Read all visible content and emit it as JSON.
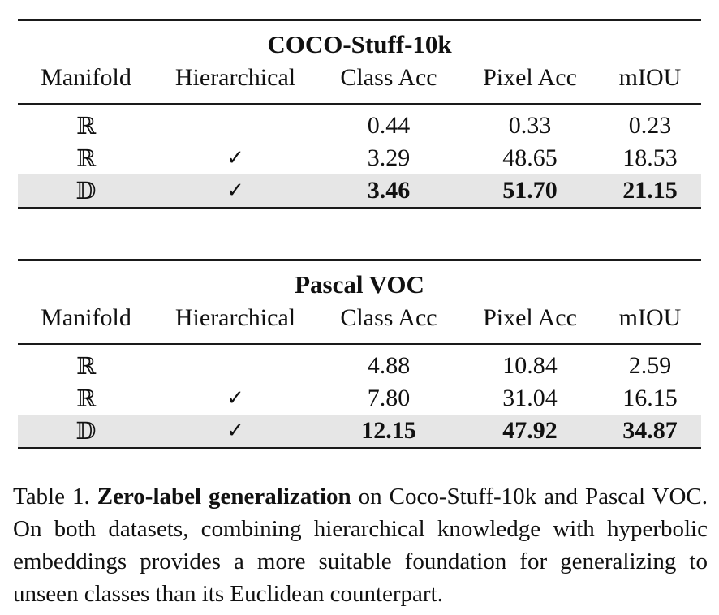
{
  "tables": [
    {
      "title": "COCO-Stuff-10k",
      "headers": [
        "Manifold",
        "Hierarchical",
        "Class Acc",
        "Pixel Acc",
        "mIOU"
      ],
      "rows": [
        {
          "manifold": "ℝ",
          "hierarchical": "",
          "class_acc": "0.44",
          "pixel_acc": "0.33",
          "miou": "0.23"
        },
        {
          "manifold": "ℝ",
          "hierarchical": "✓",
          "class_acc": "3.29",
          "pixel_acc": "48.65",
          "miou": "18.53"
        },
        {
          "manifold": "𝔻",
          "hierarchical": "✓",
          "class_acc": "3.46",
          "pixel_acc": "51.70",
          "miou": "21.15"
        }
      ]
    },
    {
      "title": "Pascal VOC",
      "headers": [
        "Manifold",
        "Hierarchical",
        "Class Acc",
        "Pixel Acc",
        "mIOU"
      ],
      "rows": [
        {
          "manifold": "ℝ",
          "hierarchical": "",
          "class_acc": "4.88",
          "pixel_acc": "10.84",
          "miou": "2.59"
        },
        {
          "manifold": "ℝ",
          "hierarchical": "✓",
          "class_acc": "7.80",
          "pixel_acc": "31.04",
          "miou": "16.15"
        },
        {
          "manifold": "𝔻",
          "hierarchical": "✓",
          "class_acc": "12.15",
          "pixel_acc": "47.92",
          "miou": "34.87"
        }
      ]
    }
  ],
  "caption": {
    "label": "Table 1.",
    "bold": "Zero-label generalization",
    "text": "on Coco-Stuff-10k and Pascal VOC. On both datasets, combining hierarchical knowledge with hyperbolic embeddings provides a more suitable foundation for generalizing to unseen classes than its Euclidean counterpart."
  }
}
